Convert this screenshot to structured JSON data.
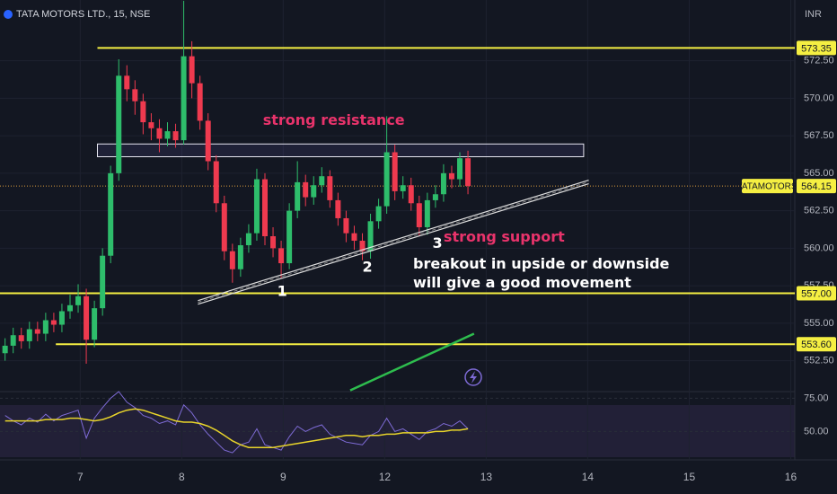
{
  "chart_data": [
    {
      "type": "candlestick",
      "title": "TATA MOTORS LTD., 15, NSE",
      "ylabel": "INR",
      "up_color": "#2ebd6b",
      "down_color": "#ef3a4f",
      "xlim": [
        -0.79,
        7.04
      ],
      "ylim": [
        550.5,
        576.55
      ],
      "xticks": [
        {
          "value": 0,
          "label": "7"
        },
        {
          "value": 1,
          "label": "8"
        },
        {
          "value": 2,
          "label": "9"
        },
        {
          "value": 3,
          "label": "12"
        },
        {
          "value": 4,
          "label": "13"
        },
        {
          "value": 5,
          "label": "14"
        },
        {
          "value": 6,
          "label": "15"
        },
        {
          "value": 7,
          "label": "16"
        }
      ],
      "yticks": [
        {
          "value": 552.5,
          "label": "552.50"
        },
        {
          "value": 555,
          "label": "555.00"
        },
        {
          "value": 557.5,
          "label": "557.50"
        },
        {
          "value": 560,
          "label": "560.00"
        },
        {
          "value": 562.5,
          "label": "562.50"
        },
        {
          "value": 565,
          "label": "565.00"
        },
        {
          "value": 567.5,
          "label": "567.50"
        },
        {
          "value": 570,
          "label": "570.00"
        },
        {
          "value": 572.5,
          "label": "572.50"
        }
      ],
      "grid": true,
      "x": [
        -0.74,
        -0.66,
        -0.58,
        -0.5,
        -0.42,
        -0.34,
        -0.26,
        -0.18,
        -0.1,
        -0.02,
        0.06,
        0.14,
        0.22,
        0.3,
        0.38,
        0.46,
        0.54,
        0.62,
        0.7,
        0.78,
        0.86,
        0.94,
        1.02,
        1.1,
        1.18,
        1.26,
        1.34,
        1.42,
        1.5,
        1.58,
        1.66,
        1.74,
        1.82,
        1.9,
        1.98,
        2.06,
        2.14,
        2.22,
        2.3,
        2.38,
        2.46,
        2.54,
        2.62,
        2.7,
        2.78,
        2.86,
        2.94,
        3.02,
        3.1,
        3.18,
        3.26,
        3.34,
        3.42,
        3.5,
        3.58,
        3.66,
        3.74,
        3.82
      ],
      "open": [
        553.0,
        553.5,
        554.2,
        553.8,
        554.6,
        554.3,
        555.2,
        554.9,
        555.8,
        556.2,
        556.8,
        553.9,
        556.0,
        559.5,
        565.0,
        571.5,
        570.6,
        569.8,
        568.4,
        568.0,
        567.3,
        567.8,
        567.2,
        572.8,
        571.0,
        568.5,
        565.8,
        563.0,
        559.8,
        558.6,
        560.2,
        561.0,
        564.6,
        560.8,
        560.0,
        559.0,
        562.5,
        564.4,
        563.4,
        564.2,
        564.8,
        563.2,
        562.0,
        561.0,
        560.5,
        559.8,
        561.8,
        562.8,
        566.4,
        563.8,
        564.2,
        563.0,
        561.4,
        563.2,
        563.6,
        565.0,
        564.6,
        566.0
      ],
      "high": [
        554.0,
        554.7,
        554.7,
        555.1,
        555.1,
        555.7,
        555.7,
        556.3,
        556.9,
        557.6,
        557.3,
        556.5,
        560.0,
        565.5,
        572.6,
        572.2,
        571.2,
        570.3,
        569.0,
        568.6,
        568.4,
        568.3,
        576.5,
        573.8,
        571.5,
        569.0,
        566.2,
        563.5,
        560.3,
        560.7,
        561.6,
        565.3,
        565.0,
        561.4,
        560.5,
        563.0,
        565.8,
        564.9,
        564.8,
        565.4,
        565.2,
        563.7,
        562.5,
        561.5,
        561.0,
        562.3,
        563.3,
        568.8,
        566.9,
        564.8,
        564.7,
        563.5,
        563.7,
        564.2,
        565.6,
        565.5,
        566.4,
        566.5
      ],
      "low": [
        552.5,
        553.0,
        553.3,
        553.3,
        553.8,
        553.8,
        554.4,
        554.4,
        555.3,
        555.7,
        552.3,
        553.4,
        555.5,
        559.0,
        564.5,
        569.8,
        568.9,
        567.6,
        567.2,
        566.4,
        566.8,
        566.7,
        566.9,
        570.0,
        567.9,
        565.2,
        562.4,
        559.2,
        557.7,
        558.1,
        559.7,
        560.5,
        560.2,
        559.4,
        558.0,
        558.6,
        562.0,
        562.8,
        562.9,
        563.7,
        562.7,
        561.5,
        560.4,
        559.9,
        559.2,
        559.3,
        561.3,
        562.3,
        563.2,
        563.3,
        562.5,
        560.8,
        560.9,
        562.7,
        563.1,
        564.0,
        564.1,
        563.6
      ],
      "close": [
        553.5,
        554.2,
        553.8,
        554.6,
        554.3,
        555.2,
        554.9,
        555.8,
        556.2,
        556.8,
        553.9,
        556.0,
        559.5,
        565.0,
        571.5,
        570.6,
        569.8,
        568.4,
        568.0,
        567.3,
        567.8,
        567.2,
        572.8,
        571.0,
        568.5,
        565.8,
        563.0,
        559.8,
        558.6,
        560.2,
        561.0,
        564.6,
        560.8,
        560.0,
        559.0,
        562.5,
        564.4,
        563.4,
        564.2,
        564.8,
        563.2,
        562.0,
        561.0,
        560.5,
        559.8,
        561.8,
        562.8,
        566.4,
        563.8,
        564.2,
        563.0,
        561.4,
        563.2,
        563.6,
        565.0,
        564.6,
        566.0,
        564.15
      ],
      "levels": [
        {
          "value": 573.35,
          "from": 0.17,
          "color": "#f5ef42"
        },
        {
          "value": 557,
          "label": "557.00",
          "from": -0.79,
          "color": "#f5ef42"
        },
        {
          "value": 553.6,
          "label": "553.60",
          "from": -0.24,
          "color": "#f5ef42"
        }
      ],
      "price_line": {
        "name": "TATAMOTORS",
        "value": 564.15,
        "color": "#f5ef42"
      },
      "zone": {
        "x": [
          0.17,
          4.96
        ],
        "y": [
          566.1,
          566.95
        ]
      },
      "trendline": {
        "x": [
          1.16,
          5.01
        ],
        "y": [
          556.39,
          564.42
        ]
      },
      "green_line": {
        "x": [
          2.66,
          3.88
        ],
        "y": [
          550.52,
          554.3
        ],
        "color": "#2ebd4e"
      },
      "annotations": [
        {
          "text": "strong resistance",
          "x": 1.8,
          "y": 568.5,
          "color": "#e8336b"
        },
        {
          "text": "strong support",
          "x": 3.58,
          "y": 560.7,
          "color": "#e8336b"
        },
        {
          "text": "breakout in upside or downside",
          "x": 3.28,
          "y": 558.9,
          "color": "#ffffff"
        },
        {
          "text": "will give a good movement",
          "x": 3.28,
          "y": 557.65,
          "color": "#ffffff"
        },
        {
          "text": "1",
          "x": 1.94,
          "y": 557.1,
          "color": "#ffffff"
        },
        {
          "text": "2",
          "x": 2.78,
          "y": 558.7,
          "color": "#ffffff"
        },
        {
          "text": "3",
          "x": 3.47,
          "y": 560.3,
          "color": "#ffffff"
        }
      ]
    },
    {
      "type": "line",
      "ylim": [
        30,
        80
      ],
      "yticks": [
        {
          "value": 75,
          "label": "75.00"
        },
        {
          "value": 50,
          "label": "50.00"
        }
      ],
      "series": [
        {
          "color": "#7e6bd6",
          "values": [
            62,
            58,
            55,
            60,
            57,
            63,
            58,
            62,
            64,
            66,
            45,
            60,
            68,
            75,
            80,
            72,
            68,
            62,
            60,
            56,
            58,
            55,
            70,
            64,
            55,
            48,
            42,
            36,
            34,
            40,
            42,
            52,
            40,
            38,
            36,
            46,
            54,
            50,
            53,
            55,
            48,
            45,
            42,
            41,
            40,
            47,
            50,
            60,
            50,
            52,
            48,
            44,
            50,
            52,
            56,
            54,
            58,
            52
          ]
        },
        {
          "color": "#e8d42a",
          "values": [
            58,
            58,
            58,
            58,
            58,
            59,
            59,
            59,
            60,
            60,
            59,
            58,
            59,
            61,
            64,
            66,
            67,
            66,
            64,
            62,
            60,
            58,
            57,
            57,
            56,
            54,
            51,
            47,
            43,
            40,
            38,
            38,
            38,
            38,
            39,
            40,
            41,
            42,
            43,
            44,
            45,
            46,
            47,
            47,
            46,
            47,
            47,
            48,
            48,
            49,
            49,
            49,
            49,
            50,
            50,
            51,
            51,
            52
          ]
        }
      ]
    }
  ]
}
